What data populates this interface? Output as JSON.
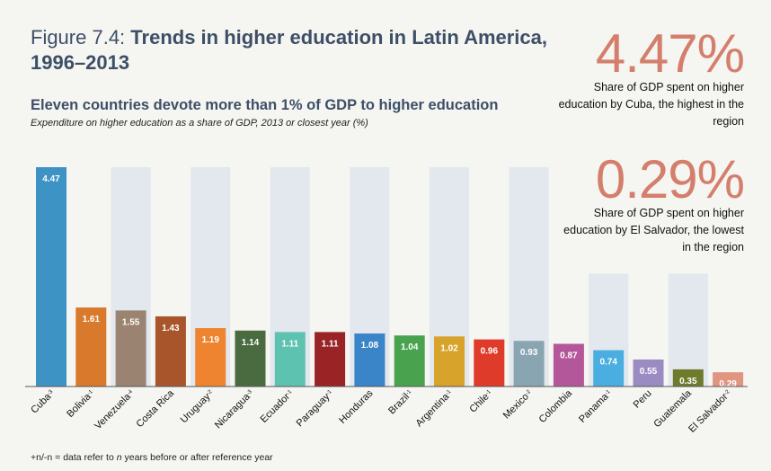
{
  "title": {
    "prefix": "Figure 7.4:",
    "main": "Trends in higher education in Latin America, 1996–2013"
  },
  "subtitle": "Eleven countries devote more than 1% of GDP to higher education",
  "caption": "Expenditure on higher education as a share of GDP, 2013 or closest year (%)",
  "stats": [
    {
      "value": "4.47%",
      "text": "Share of GDP spent on higher education by Cuba, the highest in the region"
    },
    {
      "value": "0.29%",
      "text": "Share of GDP spent on higher education by El Salvador, the lowest in the region"
    }
  ],
  "footnote": {
    "prefix": "+n/-n",
    "mid": " = data refer to ",
    "n": "n",
    "suffix": " years before or after reference year"
  },
  "chart_data": {
    "type": "bar",
    "ylim": [
      0,
      4.47
    ],
    "grid": false,
    "categories": [
      {
        "name": "Cuba",
        "sup": "-3"
      },
      {
        "name": "Bolivia",
        "sup": "-1"
      },
      {
        "name": "Venezuela",
        "sup": "-4"
      },
      {
        "name": "Costa Rica",
        "sup": ""
      },
      {
        "name": "Uruguay",
        "sup": "-2"
      },
      {
        "name": "Nicaragua",
        "sup": "-3"
      },
      {
        "name": "Ecuador",
        "sup": "-1"
      },
      {
        "name": "Paraguay",
        "sup": "-1"
      },
      {
        "name": "Honduras",
        "sup": ""
      },
      {
        "name": "Brazil",
        "sup": "-1"
      },
      {
        "name": "Argentina",
        "sup": "-1"
      },
      {
        "name": "Chile",
        "sup": "-1"
      },
      {
        "name": "Mexico",
        "sup": "-2"
      },
      {
        "name": "Colombia",
        "sup": ""
      },
      {
        "name": "Panama",
        "sup": "-1"
      },
      {
        "name": "Peru",
        "sup": ""
      },
      {
        "name": "Guatemala",
        "sup": ""
      },
      {
        "name": "El Salvador",
        "sup": "-2"
      }
    ],
    "values": [
      4.47,
      1.61,
      1.55,
      1.43,
      1.19,
      1.14,
      1.11,
      1.11,
      1.08,
      1.04,
      1.02,
      0.96,
      0.93,
      0.87,
      0.74,
      0.55,
      0.35,
      0.29
    ],
    "value_labels": [
      "4.47",
      "1.61",
      "1.55",
      "1.43",
      "1.19",
      "1.14",
      "1.11",
      "1.11",
      "1.08",
      "1.04",
      "1.02",
      "0.96",
      "0.93",
      "0.87",
      "0.74",
      "0.55",
      "0.35",
      "0.29"
    ],
    "colors": [
      "#3e93c5",
      "#d9792b",
      "#9a8371",
      "#a8552b",
      "#ee842f",
      "#4a6b3f",
      "#5ec2b0",
      "#9a2326",
      "#3a84c8",
      "#49a24d",
      "#d7a32b",
      "#df3b2b",
      "#8aa5b2",
      "#b4579a",
      "#4aaee0",
      "#9b8bc3",
      "#6f7a2c",
      "#e09580"
    ],
    "background_columns": {
      "color": "#e3e7ee",
      "top_value": 4.47,
      "highlighted_indices": [
        2,
        4,
        6,
        8,
        10,
        12,
        14,
        16
      ],
      "short_top_value": 2.3,
      "short_indices": [
        14,
        16
      ]
    }
  }
}
